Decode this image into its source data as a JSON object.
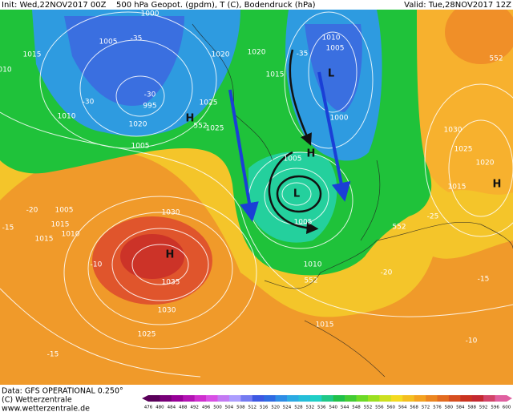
{
  "header": {
    "init": "Init: Wed,22NOV2017 00Z",
    "field": "500 hPa Geopot. (gpdm), T (C), Bodendruck (hPa)",
    "valid": "Valid: Tue,28NOV2017 12Z"
  },
  "map_labels": [
    "1000",
    "1005",
    "-35",
    "1015",
    "1020",
    "1020",
    "-35",
    "1010",
    "1005",
    "L",
    "-30",
    "-30",
    "995",
    "1010",
    "1020",
    "1025",
    "H",
    "552",
    "1025",
    "1005",
    "1015",
    "1000",
    "H",
    "1005",
    "L",
    "1030",
    "1025",
    "1020",
    "H",
    "1015",
    "-20",
    "1005",
    "1015",
    "1010",
    "1015",
    "1030",
    "H",
    "-10",
    "1035",
    "1030",
    "1025",
    "-15",
    "1005",
    "1010",
    "552",
    "1015",
    "-10",
    "-15",
    "552",
    "552",
    "-15",
    "-25",
    "-20",
    "010"
  ],
  "footer": {
    "data": "Data: GFS OPERATIONAL 0.250°",
    "copyright": "(C) Wetterzentrale",
    "url": "www.wetterzentrale.de"
  },
  "colorbar": [
    476,
    480,
    484,
    488,
    492,
    496,
    500,
    504,
    508,
    512,
    516,
    520,
    524,
    528,
    532,
    536,
    540,
    544,
    548,
    552,
    556,
    560,
    564,
    568,
    572,
    576,
    580,
    584,
    588,
    592,
    596,
    600
  ]
}
